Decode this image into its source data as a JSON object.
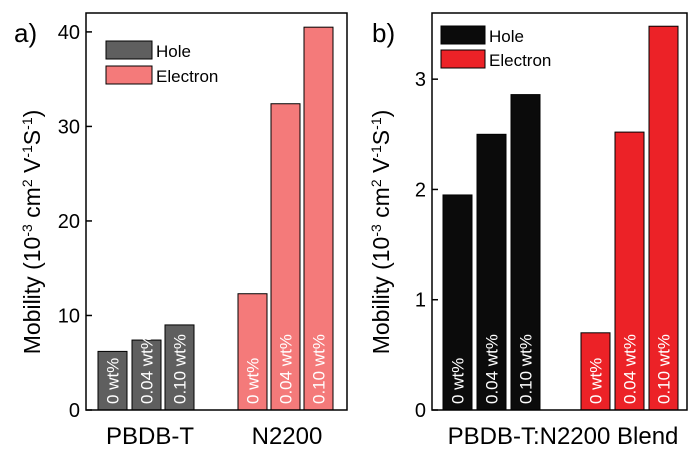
{
  "colors": {
    "hole_a": "#5f5f5f",
    "electron_a": "#f47a7a",
    "hole_b": "#0b0b0b",
    "electron_b": "#ec2227",
    "bar_label": "#ffffff"
  },
  "chart_data": [
    {
      "type": "bar",
      "panel_label": "a)",
      "ylabel": "Mobility (10",
      "ylabel_sup1": "-3",
      "ylabel_mid": " cm",
      "ylabel_sup2": "2",
      "ylabel_v": " V",
      "ylabel_sup3": "-1",
      "ylabel_s": "S",
      "ylabel_sup4": "-1",
      "ylabel_end": ")",
      "ylim": [
        0,
        42
      ],
      "yticks": [
        0,
        10,
        20,
        30,
        40
      ],
      "groups": [
        "PBDB-T",
        "N2200"
      ],
      "series": [
        {
          "name": "Hole",
          "color_key": "hole_a",
          "group": 0,
          "labels": [
            "0 wt%",
            "0.04 wt%",
            "0.10 wt%"
          ],
          "values": [
            6.2,
            7.4,
            9.0
          ]
        },
        {
          "name": "Electron",
          "color_key": "electron_a",
          "group": 1,
          "labels": [
            "0 wt%",
            "0.04 wt%",
            "0.10 wt%"
          ],
          "values": [
            12.3,
            32.4,
            40.5
          ]
        }
      ],
      "legend": [
        "Hole",
        "Electron"
      ],
      "legend_position": "top-left",
      "grid": false
    },
    {
      "type": "bar",
      "panel_label": "b)",
      "ylabel": "Mobility (10",
      "ylabel_sup1": "-3",
      "ylabel_mid": " cm",
      "ylabel_sup2": "2",
      "ylabel_v": " V",
      "ylabel_sup3": "-1",
      "ylabel_s": "S",
      "ylabel_sup4": "-1",
      "ylabel_end": ")",
      "ylim": [
        0,
        3.6
      ],
      "yticks": [
        0,
        1,
        2,
        3
      ],
      "xlabel": "PBDB-T:N2200 Blend",
      "series": [
        {
          "name": "Hole",
          "color_key": "hole_b",
          "labels": [
            "0 wt%",
            "0.04 wt%",
            "0.10 wt%"
          ],
          "values": [
            1.95,
            2.5,
            2.86
          ]
        },
        {
          "name": "Electron",
          "color_key": "electron_b",
          "labels": [
            "0 wt%",
            "0.04 wt%",
            "0.10 wt%"
          ],
          "values": [
            0.7,
            2.52,
            3.48
          ]
        }
      ],
      "legend": [
        "Hole",
        "Electron"
      ],
      "legend_position": "top-left",
      "grid": false
    }
  ]
}
